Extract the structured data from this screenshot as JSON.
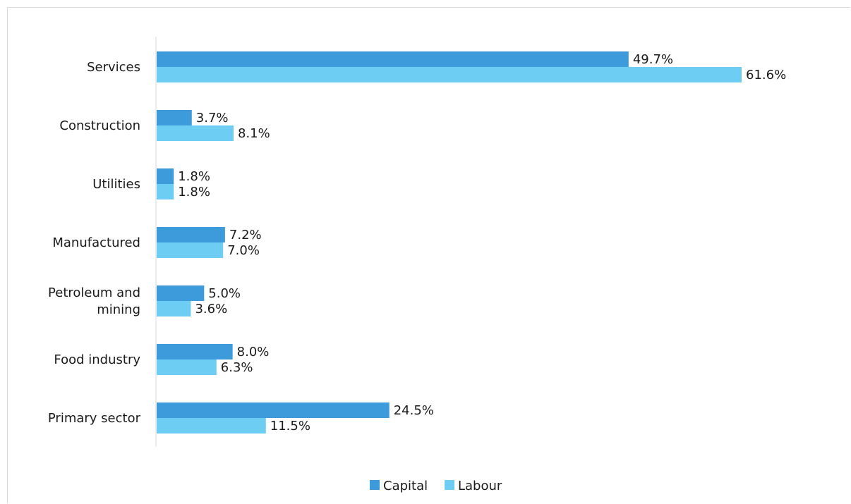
{
  "chart_data": {
    "type": "bar",
    "orientation": "horizontal",
    "categories": [
      "Services",
      "Construction",
      "Utilities",
      "Manufactured",
      "Petroleum and mining",
      "Food industry",
      "Primary sector"
    ],
    "category_lines": [
      [
        "Services"
      ],
      [
        "Construction"
      ],
      [
        "Utilities"
      ],
      [
        "Manufactured"
      ],
      [
        "Petroleum and",
        "mining"
      ],
      [
        "Food industry"
      ],
      [
        "Primary sector"
      ]
    ],
    "series": [
      {
        "name": "Capital",
        "color": "#3e9bdb",
        "values": [
          49.7,
          3.7,
          1.8,
          7.2,
          5.0,
          8.0,
          24.5
        ],
        "labels": [
          "49.7%",
          "3.7%",
          "1.8%",
          "7.2%",
          "5.0%",
          "8.0%",
          "24.5%"
        ]
      },
      {
        "name": "Labour",
        "color": "#6dcdf2",
        "values": [
          61.6,
          8.1,
          1.8,
          7.0,
          3.6,
          6.3,
          11.5
        ],
        "labels": [
          "61.6%",
          "8.1%",
          "1.8%",
          "7.0%",
          "3.6%",
          "6.3%",
          "11.5%"
        ]
      }
    ],
    "xlim": [
      0,
      70
    ],
    "grid": false,
    "legend_position": "bottom",
    "title": "",
    "xlabel": "",
    "ylabel": ""
  }
}
